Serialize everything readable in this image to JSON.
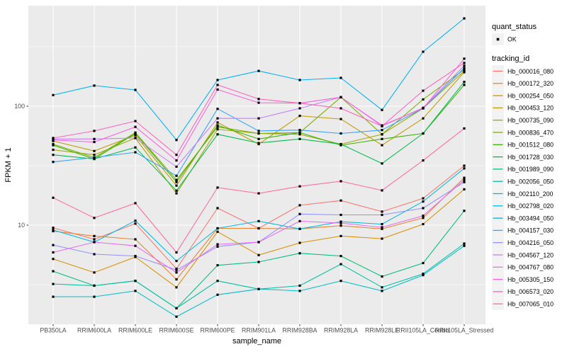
{
  "chart_data": {
    "type": "line",
    "title": "",
    "xlabel": "sample_name",
    "ylabel": "FPKM + 1",
    "y_scale": "log10",
    "ylim": [
      1.5,
      740
    ],
    "grid": true,
    "legend_position": "right",
    "x_categories": [
      "PB350LA",
      "RRIM600LA",
      "RRIM600LE",
      "RRIM600SE",
      "RRIM600PE",
      "RRIM901LA",
      "RRIM928BA",
      "RRIM928LA",
      "RRIM928LE",
      "RRII105LA_Control",
      "RRII105LA_Stressed"
    ],
    "y_ticks": [
      {
        "value": 100,
        "label": "100"
      },
      {
        "value": 10,
        "label": "10"
      }
    ],
    "y_minor_ticks": [
      316.2,
      31.62,
      3.162
    ],
    "legend": {
      "quant_status_title": "quant_status",
      "quant_status_items": [
        {
          "label": "OK",
          "marker": "black-point"
        }
      ],
      "tracking_id_title": "tracking_id"
    },
    "marker": "black-square-point",
    "series": [
      {
        "name": "Hb_000016_080",
        "color": "#F8766D",
        "values": [
          9.5,
          7.6,
          10.3,
          4.3,
          13.9,
          9.4,
          14.7,
          16.1,
          13.0,
          16.8,
          31.6
        ]
      },
      {
        "name": "Hb_000172_320",
        "color": "#EA8331",
        "values": [
          8.9,
          8.1,
          7.6,
          3.5,
          9.4,
          9.4,
          9.3,
          9.9,
          9.3,
          11.5,
          25
        ]
      },
      {
        "name": "Hb_000254_050",
        "color": "#D89000",
        "values": [
          5.2,
          4.0,
          5.4,
          3.0,
          8.8,
          5.6,
          7.1,
          8.1,
          7.7,
          10.2,
          20
        ]
      },
      {
        "name": "Hb_000453_120",
        "color": "#C09B00",
        "values": [
          51,
          42,
          57,
          21.5,
          73,
          48,
          83,
          78,
          47,
          79,
          193
        ]
      },
      {
        "name": "Hb_000735_090",
        "color": "#A3A500",
        "values": [
          43,
          39,
          54,
          18.5,
          64,
          59,
          58,
          48,
          58,
          96,
          198
        ]
      },
      {
        "name": "Hb_000836_470",
        "color": "#7CAE00",
        "values": [
          48,
          37,
          60,
          24,
          67,
          59,
          60,
          119,
          58,
          114,
          203
        ]
      },
      {
        "name": "Hb_001512_080",
        "color": "#39B600",
        "values": [
          47,
          36,
          59,
          23,
          69,
          53,
          60,
          47,
          53,
          59,
          151
        ]
      },
      {
        "name": "Hb_001728_030",
        "color": "#00BB4E",
        "values": [
          39,
          36,
          45,
          19.5,
          58,
          49,
          53,
          48,
          33,
          59,
          160
        ]
      },
      {
        "name": "Hb_001989_090",
        "color": "#00BF7D",
        "values": [
          4.1,
          3.1,
          3.4,
          2.0,
          4.6,
          4.9,
          5.8,
          5.5,
          3.7,
          4.8,
          13.2
        ]
      },
      {
        "name": "Hb_002056_050",
        "color": "#00C1A3",
        "values": [
          3.2,
          3.1,
          3.4,
          2.0,
          3.4,
          2.9,
          3.1,
          4.7,
          3.0,
          3.9,
          7.0
        ]
      },
      {
        "name": "Hb_002110_200",
        "color": "#00BFC4",
        "values": [
          2.5,
          2.5,
          2.8,
          1.7,
          2.6,
          2.9,
          2.8,
          3.4,
          2.8,
          3.8,
          6.7
        ]
      },
      {
        "name": "Hb_002798_020",
        "color": "#00BAE0",
        "values": [
          9.1,
          7.2,
          10.9,
          5.0,
          9.4,
          10.8,
          9.3,
          10.7,
          10.2,
          15.8,
          30
        ]
      },
      {
        "name": "Hb_003494_050",
        "color": "#00B0F6",
        "values": [
          124,
          149,
          137,
          52,
          166,
          198,
          166,
          173,
          93,
          287,
          547
        ]
      },
      {
        "name": "Hb_004157_030",
        "color": "#35A2FF",
        "values": [
          34,
          37,
          41,
          26,
          95,
          62,
          63,
          59,
          63,
          96,
          209
        ]
      },
      {
        "name": "Hb_004216_050",
        "color": "#9590FF",
        "values": [
          6.8,
          5.7,
          5.5,
          4.2,
          6.6,
          7.2,
          12.4,
          12.2,
          12.2,
          13.9,
          23
        ]
      },
      {
        "name": "Hb_004567_120",
        "color": "#C77CFF",
        "values": [
          53,
          53,
          54,
          31,
          79,
          79,
          96,
          119,
          68,
          97,
          219
        ]
      },
      {
        "name": "Hb_004767_080",
        "color": "#E76BF3",
        "values": [
          5.9,
          7.2,
          6.7,
          4.0,
          6.9,
          7.2,
          10.8,
          10.4,
          9.6,
          12,
          24
        ]
      },
      {
        "name": "Hb_005305_150",
        "color": "#FA62DB",
        "values": [
          52,
          50,
          67,
          35,
          138,
          107,
          106,
          119,
          69,
          96,
          251
        ]
      },
      {
        "name": "Hb_006573_020",
        "color": "#FF62BC",
        "values": [
          54,
          62,
          75,
          39,
          151,
          115,
          106,
          96,
          68,
          135,
          231
        ]
      },
      {
        "name": "Hb_007065_010",
        "color": "#FF6A98",
        "values": [
          17,
          11.5,
          15.3,
          5.9,
          20.7,
          18.5,
          21.2,
          23.4,
          19.6,
          35,
          65
        ]
      }
    ]
  },
  "style_colors": {
    "panel_bg": "#EBEBEB",
    "gridline": "#FFFFFF",
    "tick_mark": "#333333",
    "axis_text": "#4D4D4D",
    "legend_key_bg": "#F2F2F2",
    "point": "#000000",
    "figure_bg": "#FFFFFF"
  }
}
